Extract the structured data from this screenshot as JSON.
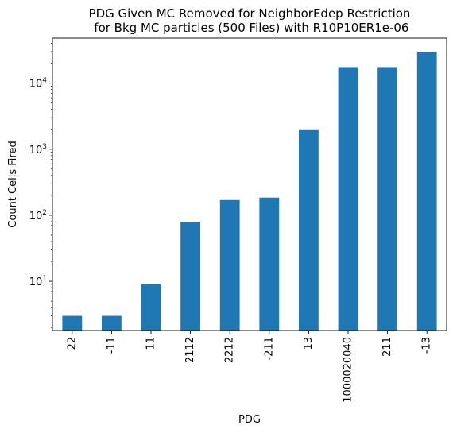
{
  "chart_data": {
    "type": "bar",
    "title": "PDG Given MC Removed for NeighborEdep Restriction\n for Bkg MC particles (500 Files) with R10P10ER1e-06",
    "xlabel": "PDG",
    "ylabel": "Count Cells Fired",
    "yscale": "log",
    "ylim": [
      1.8,
      48000
    ],
    "grid": false,
    "legend": "none",
    "categories": [
      "22",
      "-11",
      "11",
      "2112",
      "2212",
      "-211",
      "13",
      "1000020040",
      "211",
      "-13"
    ],
    "values": [
      3,
      3,
      9,
      80,
      170,
      185,
      2000,
      17500,
      17500,
      30000
    ],
    "y_major_ticks": [
      {
        "value": 10,
        "base": "10",
        "exp": "1"
      },
      {
        "value": 100,
        "base": "10",
        "exp": "2"
      },
      {
        "value": 1000,
        "base": "10",
        "exp": "3"
      },
      {
        "value": 10000,
        "base": "10",
        "exp": "4"
      }
    ],
    "bar_color": "#1f77b4"
  }
}
